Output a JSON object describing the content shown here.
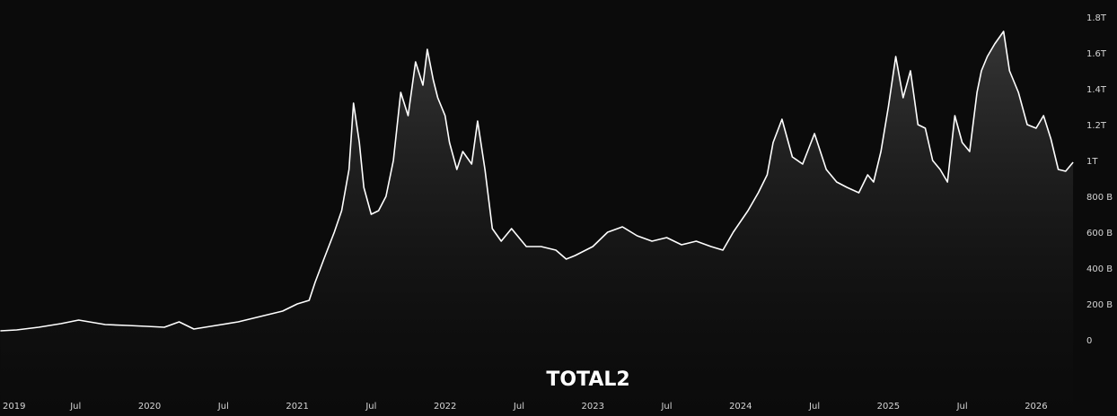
{
  "chart_data": {
    "type": "area",
    "title": "",
    "watermark": "TOTAL2",
    "ylim": [
      0,
      1.8
    ],
    "y_unit": "trillion USD",
    "y_ticks": [
      0,
      0.2,
      0.4,
      0.6,
      0.8,
      1.0,
      1.2,
      1.4,
      1.6,
      1.8
    ],
    "y_tick_labels": [
      "0",
      "200 B",
      "400 B",
      "600 B",
      "800 B",
      "1T",
      "1.2T",
      "1.4T",
      "1.6T",
      "1.8T"
    ],
    "x_ticks": [
      2019.0,
      2019.5,
      2020.0,
      2020.5,
      2021.0,
      2021.5,
      2022.0,
      2022.5,
      2023.0,
      2023.5,
      2024.0,
      2024.5,
      2025.0,
      2025.5,
      2026.0
    ],
    "x_tick_labels": [
      "2019",
      "Jul",
      "2020",
      "Jul",
      "2021",
      "Jul",
      "2022",
      "Jul",
      "2023",
      "Jul",
      "2024",
      "Jul",
      "2025",
      "Jul",
      "2026"
    ],
    "xlim": [
      2019.0,
      2026.28
    ],
    "grid": false,
    "colors": {
      "background": "#0b0b0b",
      "line": "#ffffff",
      "fill_top": "#3a3a3a",
      "fill_bottom": "#0b0b0b",
      "tick_text": "#d6d6d6"
    },
    "x": [
      2018.99,
      2019.1,
      2019.25,
      2019.4,
      2019.52,
      2019.7,
      2019.85,
      2019.98,
      2020.1,
      2020.2,
      2020.3,
      2020.45,
      2020.6,
      2020.75,
      2020.9,
      2021.0,
      2021.08,
      2021.12,
      2021.18,
      2021.25,
      2021.3,
      2021.35,
      2021.38,
      2021.42,
      2021.45,
      2021.5,
      2021.55,
      2021.6,
      2021.65,
      2021.7,
      2021.75,
      2021.8,
      2021.85,
      2021.88,
      2021.92,
      2021.95,
      2022.0,
      2022.03,
      2022.08,
      2022.12,
      2022.18,
      2022.22,
      2022.27,
      2022.32,
      2022.38,
      2022.45,
      2022.55,
      2022.65,
      2022.75,
      2022.82,
      2022.88,
      2023.0,
      2023.1,
      2023.2,
      2023.3,
      2023.4,
      2023.5,
      2023.6,
      2023.7,
      2023.8,
      2023.88,
      2023.95,
      2024.05,
      2024.12,
      2024.18,
      2024.22,
      2024.28,
      2024.35,
      2024.42,
      2024.5,
      2024.58,
      2024.65,
      2024.72,
      2024.8,
      2024.86,
      2024.9,
      2024.95,
      2025.0,
      2025.05,
      2025.1,
      2025.15,
      2025.2,
      2025.25,
      2025.3,
      2025.35,
      2025.4,
      2025.45,
      2025.5,
      2025.55,
      2025.6,
      2025.63,
      2025.67,
      2025.72,
      2025.78,
      2025.82,
      2025.88,
      2025.94,
      2026.0,
      2026.05,
      2026.1,
      2026.15,
      2026.2,
      2026.25
    ],
    "y": [
      0.05,
      0.055,
      0.07,
      0.09,
      0.11,
      0.085,
      0.08,
      0.075,
      0.07,
      0.1,
      0.06,
      0.08,
      0.1,
      0.13,
      0.16,
      0.2,
      0.22,
      0.32,
      0.45,
      0.6,
      0.72,
      0.95,
      1.32,
      1.1,
      0.85,
      0.7,
      0.72,
      0.8,
      1.0,
      1.38,
      1.25,
      1.55,
      1.42,
      1.62,
      1.45,
      1.35,
      1.25,
      1.1,
      0.95,
      1.05,
      0.98,
      1.22,
      0.95,
      0.62,
      0.55,
      0.62,
      0.52,
      0.52,
      0.5,
      0.45,
      0.47,
      0.52,
      0.6,
      0.63,
      0.58,
      0.55,
      0.57,
      0.53,
      0.55,
      0.52,
      0.5,
      0.6,
      0.72,
      0.82,
      0.92,
      1.1,
      1.23,
      1.02,
      0.98,
      1.15,
      0.95,
      0.88,
      0.85,
      0.82,
      0.92,
      0.88,
      1.05,
      1.3,
      1.58,
      1.35,
      1.5,
      1.2,
      1.18,
      1.0,
      0.95,
      0.88,
      1.25,
      1.1,
      1.05,
      1.38,
      1.5,
      1.58,
      1.65,
      1.72,
      1.5,
      1.38,
      1.2,
      1.18,
      1.25,
      1.12,
      0.95,
      0.94,
      0.99
    ]
  }
}
